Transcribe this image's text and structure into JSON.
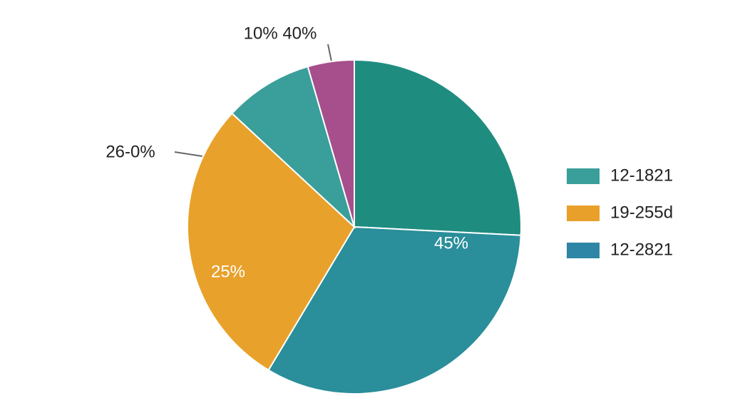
{
  "chart_data": {
    "type": "pie",
    "values": [
      25.8,
      32.8,
      28.3,
      8.6,
      4.5
    ],
    "colors": [
      "#1f8c80",
      "#2a8e9b",
      "#e8a12b",
      "#3a9e9a",
      "#a64f8c"
    ],
    "annotations": [
      "45%",
      "25%",
      "26-0%",
      "10% 40%"
    ],
    "legend": [
      {
        "name": "12-1821",
        "color": "#3a9e9a"
      },
      {
        "name": "19-255d",
        "color": "#e8a02a"
      },
      {
        "name": "12-2821",
        "color": "#2e86a6"
      }
    ]
  }
}
